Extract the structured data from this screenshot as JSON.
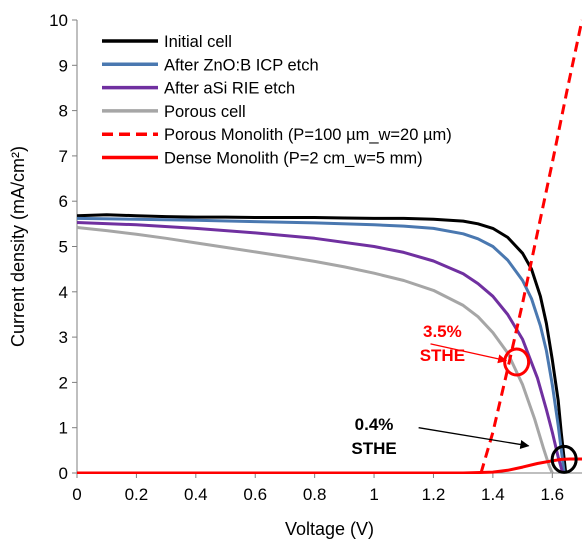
{
  "chart_data": {
    "type": "line",
    "xlabel": "Voltage (V)",
    "ylabel": "Current density (mA/cm²)",
    "xlim": [
      0,
      1.7
    ],
    "ylim": [
      0,
      10
    ],
    "xticks": [
      0,
      0.2,
      0.4,
      0.6,
      0.8,
      1,
      1.2,
      1.4,
      1.6
    ],
    "xtick_labels": [
      "0",
      "0.2",
      "0.4",
      "0.6",
      "0.8",
      "1",
      "1.2",
      "1.4",
      "1.6"
    ],
    "yticks": [
      0,
      1,
      2,
      3,
      4,
      5,
      6,
      7,
      8,
      9,
      10
    ],
    "ytick_labels": [
      "0",
      "1",
      "2",
      "3",
      "4",
      "5",
      "6",
      "7",
      "8",
      "9",
      "10"
    ],
    "grid": false,
    "legend_position": "top-left",
    "series": [
      {
        "name": "Initial cell",
        "color": "#000000",
        "dash": "solid",
        "x": [
          0,
          0.1,
          0.2,
          0.3,
          0.4,
          0.5,
          0.6,
          0.7,
          0.8,
          0.9,
          1.0,
          1.1,
          1.2,
          1.3,
          1.35,
          1.4,
          1.45,
          1.5,
          1.53,
          1.56,
          1.58,
          1.6,
          1.62,
          1.63,
          1.645
        ],
        "y": [
          5.68,
          5.7,
          5.68,
          5.66,
          5.65,
          5.65,
          5.64,
          5.64,
          5.64,
          5.63,
          5.62,
          5.62,
          5.6,
          5.56,
          5.5,
          5.4,
          5.2,
          4.85,
          4.5,
          3.9,
          3.3,
          2.5,
          1.6,
          0.9,
          0.0
        ]
      },
      {
        "name": "After ZnO:B ICP etch",
        "color": "#4a78b0",
        "dash": "solid",
        "x": [
          0,
          0.2,
          0.4,
          0.6,
          0.8,
          1.0,
          1.1,
          1.2,
          1.3,
          1.35,
          1.4,
          1.45,
          1.5,
          1.53,
          1.56,
          1.58,
          1.6,
          1.62,
          1.64
        ],
        "y": [
          5.62,
          5.6,
          5.58,
          5.55,
          5.52,
          5.48,
          5.45,
          5.4,
          5.28,
          5.17,
          5.0,
          4.7,
          4.25,
          3.85,
          3.25,
          2.7,
          1.95,
          1.05,
          0.0
        ]
      },
      {
        "name": "After aSi RIE etch",
        "color": "#7030a0",
        "dash": "solid",
        "x": [
          0,
          0.2,
          0.4,
          0.6,
          0.8,
          1.0,
          1.1,
          1.2,
          1.3,
          1.35,
          1.4,
          1.45,
          1.5,
          1.55,
          1.58,
          1.6,
          1.62,
          1.635
        ],
        "y": [
          5.53,
          5.48,
          5.4,
          5.3,
          5.18,
          5.0,
          4.87,
          4.68,
          4.4,
          4.18,
          3.9,
          3.5,
          2.95,
          2.1,
          1.4,
          0.9,
          0.35,
          0.0
        ]
      },
      {
        "name": "Porous cell",
        "color": "#a6a6a6",
        "dash": "solid",
        "x": [
          0,
          0.1,
          0.2,
          0.3,
          0.4,
          0.5,
          0.6,
          0.7,
          0.8,
          0.9,
          1.0,
          1.1,
          1.2,
          1.3,
          1.35,
          1.4,
          1.45,
          1.5,
          1.54,
          1.57,
          1.59,
          1.6
        ],
        "y": [
          5.42,
          5.35,
          5.27,
          5.18,
          5.08,
          4.98,
          4.88,
          4.78,
          4.67,
          4.55,
          4.41,
          4.25,
          4.03,
          3.7,
          3.45,
          3.1,
          2.65,
          1.95,
          1.2,
          0.55,
          0.15,
          0.0
        ]
      },
      {
        "name": "Porous Monolith (P=100 µm_w=20 µm)",
        "color": "#ff0000",
        "dash": "dashed",
        "x": [
          1.36,
          1.4,
          1.45,
          1.5,
          1.55,
          1.6,
          1.65,
          1.7
        ],
        "y": [
          0.0,
          0.9,
          2.3,
          3.75,
          5.3,
          6.85,
          8.45,
          10.0
        ]
      },
      {
        "name": "Dense Monolith (P=2 cm_w=5 mm)",
        "color": "#ff0000",
        "dash": "solid",
        "x": [
          0,
          1.0,
          1.3,
          1.4,
          1.45,
          1.5,
          1.55,
          1.6,
          1.63,
          1.66,
          1.7
        ],
        "y": [
          0.0,
          0.0,
          0.0,
          0.02,
          0.06,
          0.13,
          0.21,
          0.27,
          0.3,
          0.31,
          0.31
        ]
      }
    ],
    "annotations": [
      {
        "lines": [
          "3.5%",
          "STHE"
        ],
        "color": "#ff0000",
        "text_at": [
          1.23,
          3.0
        ],
        "arrow_from": [
          1.19,
          2.85
        ],
        "arrow_to": [
          1.445,
          2.48
        ],
        "circle_at": [
          1.48,
          2.45
        ]
      },
      {
        "lines": [
          "0.4%",
          "STHE"
        ],
        "color": "#000000",
        "text_at": [
          1.0,
          0.95
        ],
        "arrow_from": [
          1.15,
          1.0
        ],
        "arrow_to": [
          1.52,
          0.6
        ],
        "circle_at": [
          1.64,
          0.3
        ]
      }
    ]
  }
}
